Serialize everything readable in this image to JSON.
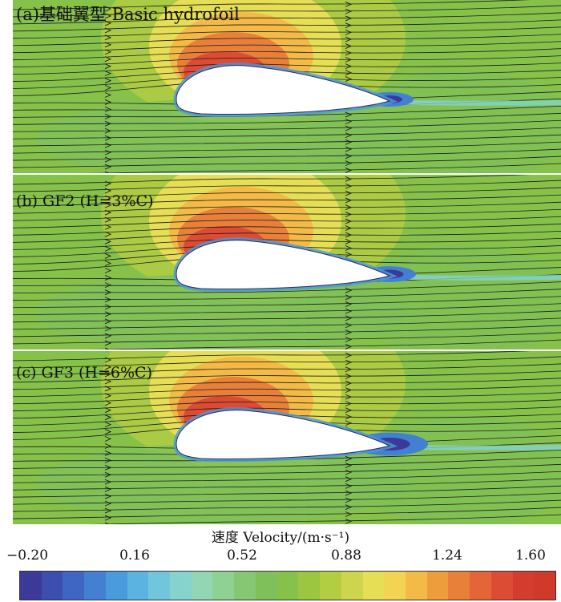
{
  "panels": [
    {
      "id": "a",
      "label": "(a)基础翼型 Basic hydrofoil",
      "vortex_size": 1.0
    },
    {
      "id": "b",
      "label": "(b) GF2 (H=3%C)",
      "vortex_size": 1.1
    },
    {
      "id": "c",
      "label": "(c) GF3 (H=6%C)",
      "vortex_size": 1.6
    }
  ],
  "colorbar": {
    "title": "速度 Velocity/(m·s⁻¹)",
    "ticks": [
      "−0.20",
      "0.16",
      "0.52",
      "0.88",
      "1.24",
      "1.60"
    ],
    "min": -0.2,
    "max": 1.6,
    "colors": [
      "#3a3a98",
      "#3d4fae",
      "#3f66c2",
      "#4380d2",
      "#4a9bdc",
      "#5bb3e0",
      "#72c6dc",
      "#86d2cc",
      "#93d6b4",
      "#8fd093",
      "#86c773",
      "#7fc05a",
      "#86c24a",
      "#9ac640",
      "#b3cd43",
      "#cdd54e",
      "#e6df56",
      "#f3d452",
      "#f3ba47",
      "#ee9d3d",
      "#e9803a",
      "#e36538",
      "#dc4c34",
      "#d33d2e",
      "#cf3a2a"
    ]
  }
}
